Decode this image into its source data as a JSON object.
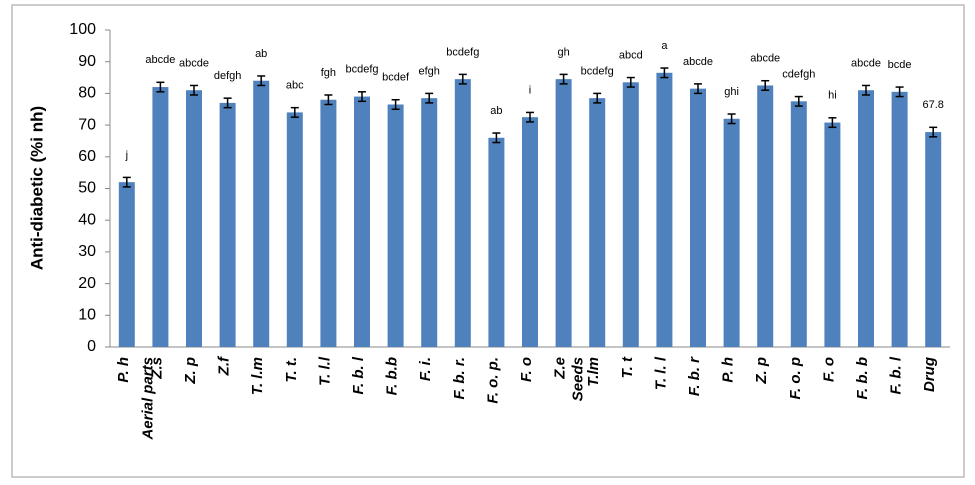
{
  "chart_data": {
    "type": "bar",
    "ylabel": "Anti-diabetic (%i nh)",
    "categories": [
      "P. h",
      "Z.s",
      "Z. p",
      "Z.f",
      "T. l.m",
      "T. t.",
      "T. l.l",
      "F. b. l",
      "F. b.b",
      "F. i.",
      "F. b. r.",
      "F. o. p.",
      "F. o",
      "Z.e",
      "T.lm",
      "T. t",
      "T. l. l",
      "F. b. r",
      "P. h",
      "Z. p",
      "F. o. p",
      "F. o",
      "F. b. b",
      "F. b. l",
      "Drug"
    ],
    "groups": [
      "Aerial parts",
      "Seeds"
    ],
    "values": [
      52,
      82,
      81,
      77,
      84,
      74,
      78,
      79,
      76.5,
      78.5,
      84.5,
      66,
      72.5,
      84.5,
      78.5,
      83.5,
      86.5,
      81.5,
      72,
      82.5,
      77.5,
      70.8,
      81,
      80.5,
      67.8
    ],
    "errors": [
      1.5,
      1.5,
      1.5,
      1.5,
      1.5,
      1.5,
      1.5,
      1.5,
      1.5,
      1.5,
      1.5,
      1.5,
      1.5,
      1.5,
      1.5,
      1.5,
      1.5,
      1.5,
      1.5,
      1.5,
      1.5,
      1.5,
      1.5,
      1.5,
      1.5
    ],
    "annotations": [
      "j",
      "abcde",
      "abcde",
      "defgh",
      "ab",
      "abc",
      "fgh",
      "bcdefg",
      "bcdef",
      "efgh",
      "bcdefg",
      "ab",
      "i",
      "gh",
      "bcdefg",
      "abcd",
      "a",
      "abcde",
      "ghi",
      "abcde",
      "cdefgh",
      "hi",
      "abcde",
      "bcde",
      "67.8"
    ],
    "color": "#4f81bd",
    "ylim": [
      0,
      100
    ],
    "yticks": [
      0,
      10,
      20,
      30,
      40,
      50,
      60,
      70,
      80,
      90,
      100
    ]
  }
}
